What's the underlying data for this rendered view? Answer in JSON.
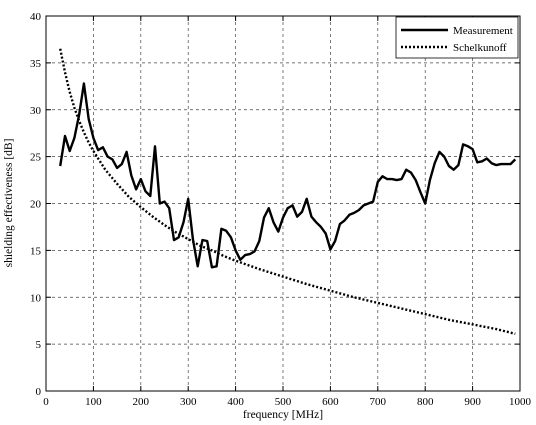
{
  "chart_data": {
    "type": "line",
    "title": "",
    "xlabel": "frequency [MHz]",
    "ylabel": "shielding effectiveness [dB]",
    "xlim": [
      0,
      1000
    ],
    "ylim": [
      0,
      40
    ],
    "xticks": [
      0,
      100,
      200,
      300,
      400,
      500,
      600,
      700,
      800,
      900,
      1000
    ],
    "yticks": [
      0,
      5,
      10,
      15,
      20,
      25,
      30,
      35,
      40
    ],
    "grid": true,
    "grid_style": "dashed",
    "legend_position": "top-right",
    "series": [
      {
        "name": "Measurement",
        "style": "solid",
        "color": "#000000",
        "x": [
          30,
          40,
          50,
          60,
          70,
          80,
          90,
          100,
          110,
          120,
          130,
          140,
          150,
          160,
          170,
          180,
          190,
          200,
          210,
          220,
          230,
          240,
          250,
          260,
          270,
          280,
          290,
          300,
          310,
          320,
          330,
          340,
          350,
          360,
          370,
          380,
          390,
          400,
          410,
          420,
          430,
          440,
          450,
          460,
          470,
          480,
          490,
          500,
          510,
          520,
          530,
          540,
          550,
          560,
          570,
          580,
          590,
          600,
          610,
          620,
          630,
          640,
          650,
          660,
          670,
          680,
          690,
          700,
          710,
          720,
          730,
          740,
          750,
          760,
          770,
          780,
          790,
          800,
          810,
          820,
          830,
          840,
          850,
          860,
          870,
          880,
          890,
          900,
          910,
          920,
          930,
          940,
          950,
          960,
          970,
          980,
          990
        ],
        "y": [
          24.0,
          27.2,
          25.6,
          27.0,
          29.5,
          32.8,
          29.0,
          27.0,
          25.7,
          26.0,
          25.0,
          24.7,
          23.8,
          24.2,
          25.5,
          23.0,
          21.5,
          22.6,
          21.3,
          20.8,
          26.1,
          20.0,
          20.2,
          19.5,
          16.1,
          16.4,
          18.0,
          20.5,
          16.2,
          13.3,
          16.1,
          16.0,
          13.2,
          13.3,
          17.3,
          17.1,
          16.4,
          15.0,
          14.0,
          14.5,
          14.6,
          14.9,
          16.0,
          18.5,
          19.5,
          18.0,
          17.0,
          18.5,
          19.5,
          19.8,
          18.6,
          19.1,
          20.5,
          18.6,
          18.0,
          17.5,
          16.8,
          15.1,
          16.0,
          17.8,
          18.2,
          18.8,
          19.0,
          19.3,
          19.8,
          20.0,
          20.2,
          22.3,
          22.9,
          22.6,
          22.6,
          22.5,
          22.6,
          23.6,
          23.3,
          22.5,
          21.2,
          20.0,
          22.5,
          24.3,
          25.5,
          25.0,
          24.0,
          23.6,
          24.1,
          26.3,
          26.1,
          25.8,
          24.4,
          24.5,
          24.8,
          24.3,
          24.1,
          24.2,
          24.2,
          24.2,
          24.7
        ]
      },
      {
        "name": "Schelkunoff",
        "style": "dotted",
        "color": "#000000",
        "x": [
          30,
          40,
          50,
          60,
          70,
          80,
          90,
          100,
          125,
          150,
          175,
          200,
          225,
          250,
          275,
          300,
          325,
          350,
          375,
          400,
          450,
          500,
          550,
          600,
          650,
          700,
          750,
          800,
          850,
          900,
          950,
          990
        ],
        "y": [
          36.5,
          34.0,
          31.9,
          30.2,
          28.8,
          27.6,
          26.5,
          25.6,
          23.6,
          22.1,
          20.7,
          19.6,
          18.6,
          17.7,
          16.9,
          16.2,
          15.5,
          15.0,
          14.4,
          13.9,
          13.0,
          12.2,
          11.4,
          10.7,
          10.0,
          9.4,
          8.8,
          8.2,
          7.6,
          7.1,
          6.6,
          6.1
        ]
      }
    ]
  }
}
